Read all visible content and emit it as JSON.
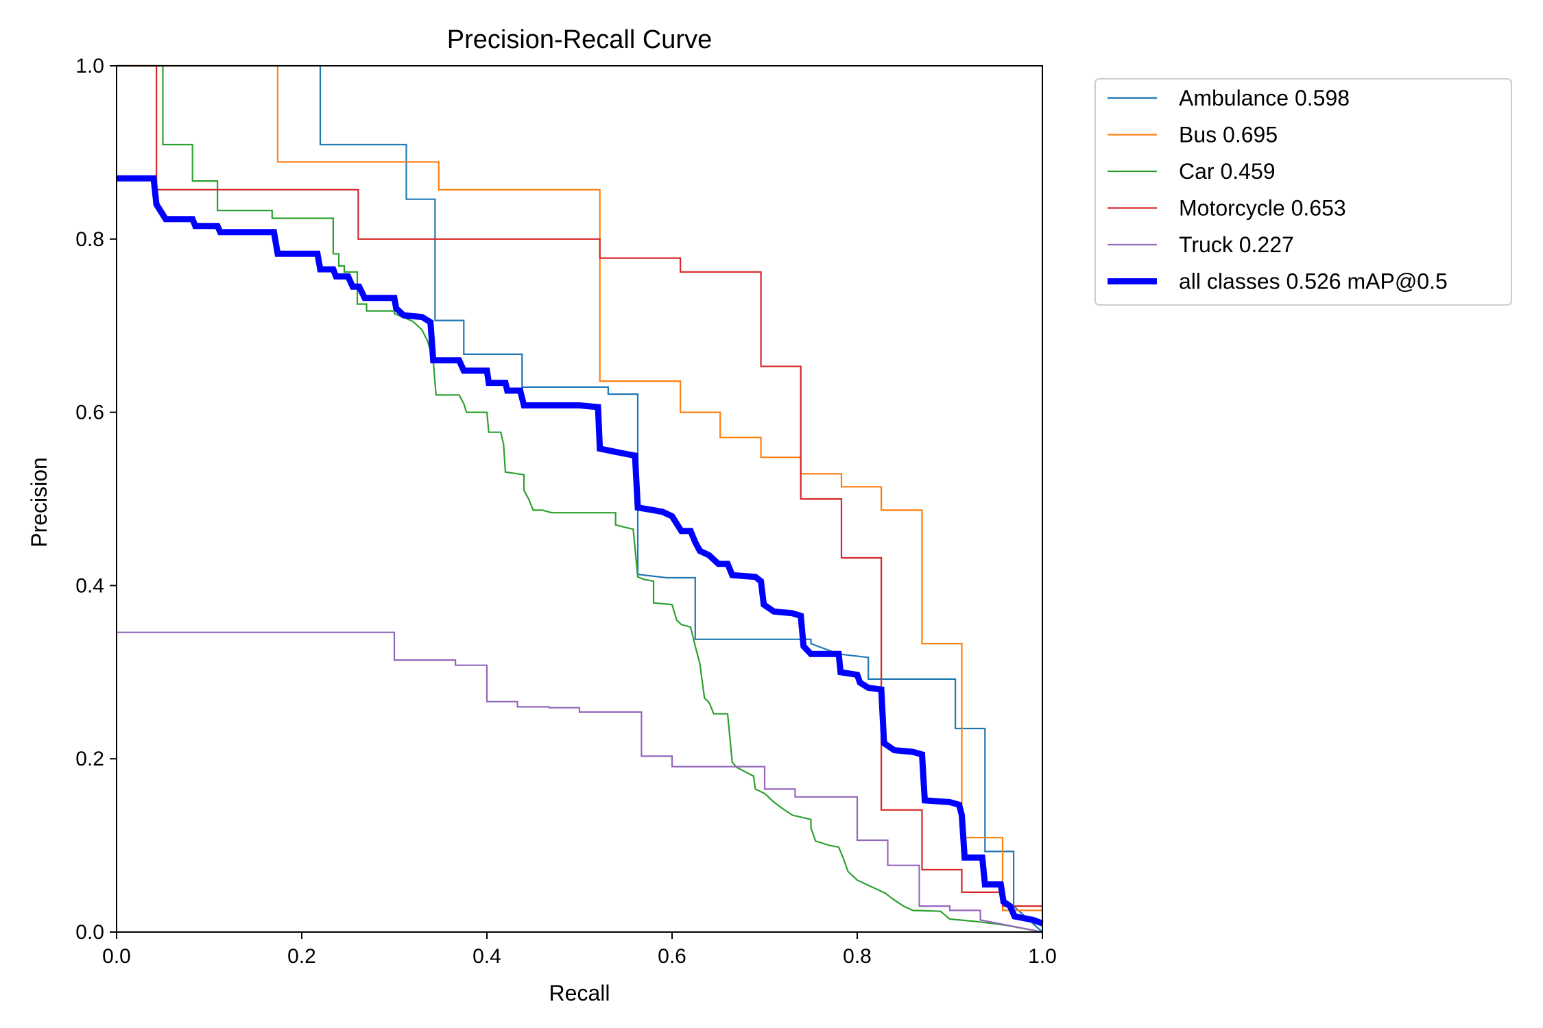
{
  "chart_data": {
    "type": "line",
    "title": "Precision-Recall Curve",
    "xlabel": "Recall",
    "ylabel": "Precision",
    "xlim": [
      0.0,
      1.0
    ],
    "ylim": [
      0.0,
      1.0
    ],
    "xticks": [
      "0.0",
      "0.2",
      "0.4",
      "0.6",
      "0.8",
      "1.0"
    ],
    "yticks": [
      "0.0",
      "0.2",
      "0.4",
      "0.6",
      "0.8",
      "1.0"
    ],
    "grid": false,
    "legend": "outside-top-right",
    "series": [
      {
        "name": "Ambulance 0.598",
        "color": "#1f77b4",
        "linewidth": "thin",
        "points": [
          [
            0.0,
            1.0
          ],
          [
            0.22,
            1.0
          ],
          [
            0.22,
            0.909
          ],
          [
            0.313,
            0.909
          ],
          [
            0.313,
            0.846
          ],
          [
            0.344,
            0.846
          ],
          [
            0.344,
            0.706
          ],
          [
            0.375,
            0.706
          ],
          [
            0.375,
            0.667
          ],
          [
            0.438,
            0.667
          ],
          [
            0.438,
            0.629
          ],
          [
            0.531,
            0.629
          ],
          [
            0.531,
            0.621
          ],
          [
            0.563,
            0.621
          ],
          [
            0.563,
            0.413
          ],
          [
            0.5625,
            0.413
          ],
          [
            0.594,
            0.409
          ],
          [
            0.625,
            0.409
          ],
          [
            0.625,
            0.338
          ],
          [
            0.75,
            0.338
          ],
          [
            0.75,
            0.333
          ],
          [
            0.78,
            0.321
          ],
          [
            0.812,
            0.317
          ],
          [
            0.812,
            0.292
          ],
          [
            0.906,
            0.292
          ],
          [
            0.906,
            0.235
          ],
          [
            0.938,
            0.235
          ],
          [
            0.938,
            0.093
          ],
          [
            0.969,
            0.093
          ],
          [
            0.969,
            0.03
          ],
          [
            1.0,
            0.0
          ]
        ]
      },
      {
        "name": "Bus 0.695",
        "color": "#ff7f0e",
        "linewidth": "thin",
        "points": [
          [
            0.0,
            1.0
          ],
          [
            0.174,
            1.0
          ],
          [
            0.174,
            0.889
          ],
          [
            0.348,
            0.889
          ],
          [
            0.348,
            0.857
          ],
          [
            0.522,
            0.857
          ],
          [
            0.522,
            0.636
          ],
          [
            0.609,
            0.636
          ],
          [
            0.609,
            0.6
          ],
          [
            0.652,
            0.6
          ],
          [
            0.652,
            0.571
          ],
          [
            0.696,
            0.571
          ],
          [
            0.696,
            0.548
          ],
          [
            0.739,
            0.548
          ],
          [
            0.739,
            0.529
          ],
          [
            0.783,
            0.529
          ],
          [
            0.783,
            0.514
          ],
          [
            0.826,
            0.514
          ],
          [
            0.826,
            0.487
          ],
          [
            0.87,
            0.487
          ],
          [
            0.87,
            0.333
          ],
          [
            0.913,
            0.333
          ],
          [
            0.913,
            0.109
          ],
          [
            0.957,
            0.109
          ],
          [
            0.957,
            0.025
          ],
          [
            1.0,
            0.025
          ]
        ]
      },
      {
        "name": "Car 0.459",
        "color": "#2ca02c",
        "linewidth": "thin",
        "points": [
          [
            0.0,
            1.0
          ],
          [
            0.05,
            1.0
          ],
          [
            0.05,
            0.909
          ],
          [
            0.082,
            0.909
          ],
          [
            0.082,
            0.867
          ],
          [
            0.109,
            0.867
          ],
          [
            0.109,
            0.833
          ],
          [
            0.168,
            0.833
          ],
          [
            0.168,
            0.824
          ],
          [
            0.234,
            0.824
          ],
          [
            0.234,
            0.783
          ],
          [
            0.24,
            0.783
          ],
          [
            0.24,
            0.769
          ],
          [
            0.246,
            0.769
          ],
          [
            0.246,
            0.762
          ],
          [
            0.26,
            0.762
          ],
          [
            0.26,
            0.725
          ],
          [
            0.27,
            0.725
          ],
          [
            0.27,
            0.717
          ],
          [
            0.3,
            0.717
          ],
          [
            0.3,
            0.714
          ],
          [
            0.32,
            0.705
          ],
          [
            0.33,
            0.695
          ],
          [
            0.336,
            0.682
          ],
          [
            0.342,
            0.66
          ],
          [
            0.345,
            0.62
          ],
          [
            0.37,
            0.62
          ],
          [
            0.375,
            0.61
          ],
          [
            0.378,
            0.6
          ],
          [
            0.4,
            0.6
          ],
          [
            0.402,
            0.577
          ],
          [
            0.415,
            0.577
          ],
          [
            0.418,
            0.563
          ],
          [
            0.42,
            0.531
          ],
          [
            0.44,
            0.528
          ],
          [
            0.44,
            0.51
          ],
          [
            0.445,
            0.5
          ],
          [
            0.45,
            0.487
          ],
          [
            0.46,
            0.487
          ],
          [
            0.47,
            0.484
          ],
          [
            0.539,
            0.484
          ],
          [
            0.539,
            0.47
          ],
          [
            0.55,
            0.467
          ],
          [
            0.558,
            0.465
          ],
          [
            0.563,
            0.41
          ],
          [
            0.57,
            0.407
          ],
          [
            0.58,
            0.405
          ],
          [
            0.58,
            0.38
          ],
          [
            0.6,
            0.378
          ],
          [
            0.605,
            0.36
          ],
          [
            0.61,
            0.355
          ],
          [
            0.62,
            0.352
          ],
          [
            0.625,
            0.33
          ],
          [
            0.63,
            0.31
          ],
          [
            0.635,
            0.27
          ],
          [
            0.64,
            0.265
          ],
          [
            0.645,
            0.252
          ],
          [
            0.66,
            0.252
          ],
          [
            0.665,
            0.196
          ],
          [
            0.67,
            0.19
          ],
          [
            0.688,
            0.18
          ],
          [
            0.69,
            0.165
          ],
          [
            0.7,
            0.16
          ],
          [
            0.71,
            0.15
          ],
          [
            0.72,
            0.142
          ],
          [
            0.73,
            0.135
          ],
          [
            0.75,
            0.13
          ],
          [
            0.75,
            0.12
          ],
          [
            0.755,
            0.105
          ],
          [
            0.77,
            0.1
          ],
          [
            0.78,
            0.098
          ],
          [
            0.785,
            0.085
          ],
          [
            0.79,
            0.07
          ],
          [
            0.8,
            0.06
          ],
          [
            0.81,
            0.055
          ],
          [
            0.82,
            0.05
          ],
          [
            0.83,
            0.045
          ],
          [
            0.84,
            0.037
          ],
          [
            0.85,
            0.03
          ],
          [
            0.86,
            0.025
          ],
          [
            0.89,
            0.024
          ],
          [
            0.9,
            0.015
          ],
          [
            0.93,
            0.012
          ],
          [
            0.96,
            0.008
          ],
          [
            1.0,
            0.0
          ]
        ]
      },
      {
        "name": "Motorcycle 0.653",
        "color": "#d62728",
        "linewidth": "thin",
        "points": [
          [
            0.0,
            1.0
          ],
          [
            0.043,
            1.0
          ],
          [
            0.043,
            0.857
          ],
          [
            0.261,
            0.857
          ],
          [
            0.261,
            0.8
          ],
          [
            0.522,
            0.8
          ],
          [
            0.522,
            0.778
          ],
          [
            0.609,
            0.778
          ],
          [
            0.609,
            0.762
          ],
          [
            0.696,
            0.762
          ],
          [
            0.696,
            0.653
          ],
          [
            0.739,
            0.653
          ],
          [
            0.739,
            0.5
          ],
          [
            0.783,
            0.5
          ],
          [
            0.783,
            0.432
          ],
          [
            0.826,
            0.432
          ],
          [
            0.826,
            0.141
          ],
          [
            0.87,
            0.141
          ],
          [
            0.87,
            0.072
          ],
          [
            0.913,
            0.072
          ],
          [
            0.913,
            0.046
          ],
          [
            0.957,
            0.046
          ],
          [
            0.957,
            0.03
          ],
          [
            1.0,
            0.03
          ]
        ]
      },
      {
        "name": "Truck 0.227",
        "color": "#9467bd",
        "linewidth": "thin",
        "points": [
          [
            0.0,
            0.346
          ],
          [
            0.3,
            0.346
          ],
          [
            0.3,
            0.314
          ],
          [
            0.366,
            0.314
          ],
          [
            0.366,
            0.308
          ],
          [
            0.4,
            0.308
          ],
          [
            0.4,
            0.266
          ],
          [
            0.433,
            0.266
          ],
          [
            0.433,
            0.26
          ],
          [
            0.467,
            0.26
          ],
          [
            0.467,
            0.259
          ],
          [
            0.5,
            0.259
          ],
          [
            0.5,
            0.254
          ],
          [
            0.567,
            0.254
          ],
          [
            0.567,
            0.203
          ],
          [
            0.6,
            0.203
          ],
          [
            0.6,
            0.191
          ],
          [
            0.7,
            0.191
          ],
          [
            0.7,
            0.165
          ],
          [
            0.733,
            0.165
          ],
          [
            0.733,
            0.156
          ],
          [
            0.8,
            0.156
          ],
          [
            0.8,
            0.106
          ],
          [
            0.833,
            0.106
          ],
          [
            0.833,
            0.077
          ],
          [
            0.867,
            0.077
          ],
          [
            0.867,
            0.03
          ],
          [
            0.9,
            0.03
          ],
          [
            0.9,
            0.025
          ],
          [
            0.933,
            0.025
          ],
          [
            0.933,
            0.014
          ],
          [
            1.0,
            0.0
          ]
        ]
      },
      {
        "name": "all classes 0.526 mAP@0.5",
        "color": "#0000ff",
        "linewidth": "thick",
        "points": [
          [
            0.0,
            0.87
          ],
          [
            0.04,
            0.87
          ],
          [
            0.043,
            0.84
          ],
          [
            0.053,
            0.823
          ],
          [
            0.082,
            0.823
          ],
          [
            0.085,
            0.815
          ],
          [
            0.109,
            0.815
          ],
          [
            0.112,
            0.808
          ],
          [
            0.17,
            0.808
          ],
          [
            0.174,
            0.783
          ],
          [
            0.217,
            0.783
          ],
          [
            0.22,
            0.765
          ],
          [
            0.234,
            0.765
          ],
          [
            0.237,
            0.757
          ],
          [
            0.25,
            0.757
          ],
          [
            0.255,
            0.745
          ],
          [
            0.262,
            0.745
          ],
          [
            0.268,
            0.732
          ],
          [
            0.3,
            0.732
          ],
          [
            0.302,
            0.72
          ],
          [
            0.31,
            0.712
          ],
          [
            0.33,
            0.71
          ],
          [
            0.339,
            0.704
          ],
          [
            0.342,
            0.66
          ],
          [
            0.37,
            0.66
          ],
          [
            0.375,
            0.648
          ],
          [
            0.4,
            0.648
          ],
          [
            0.402,
            0.634
          ],
          [
            0.42,
            0.634
          ],
          [
            0.422,
            0.625
          ],
          [
            0.436,
            0.625
          ],
          [
            0.44,
            0.608
          ],
          [
            0.5,
            0.608
          ],
          [
            0.52,
            0.606
          ],
          [
            0.522,
            0.558
          ],
          [
            0.545,
            0.553
          ],
          [
            0.56,
            0.55
          ],
          [
            0.563,
            0.49
          ],
          [
            0.58,
            0.487
          ],
          [
            0.59,
            0.485
          ],
          [
            0.6,
            0.48
          ],
          [
            0.61,
            0.463
          ],
          [
            0.62,
            0.463
          ],
          [
            0.625,
            0.45
          ],
          [
            0.63,
            0.44
          ],
          [
            0.64,
            0.435
          ],
          [
            0.65,
            0.425
          ],
          [
            0.66,
            0.425
          ],
          [
            0.665,
            0.412
          ],
          [
            0.69,
            0.41
          ],
          [
            0.696,
            0.405
          ],
          [
            0.699,
            0.378
          ],
          [
            0.71,
            0.37
          ],
          [
            0.73,
            0.368
          ],
          [
            0.739,
            0.365
          ],
          [
            0.742,
            0.33
          ],
          [
            0.75,
            0.321
          ],
          [
            0.78,
            0.321
          ],
          [
            0.782,
            0.3
          ],
          [
            0.8,
            0.297
          ],
          [
            0.803,
            0.288
          ],
          [
            0.812,
            0.282
          ],
          [
            0.826,
            0.28
          ],
          [
            0.829,
            0.218
          ],
          [
            0.84,
            0.21
          ],
          [
            0.86,
            0.208
          ],
          [
            0.87,
            0.205
          ],
          [
            0.873,
            0.152
          ],
          [
            0.9,
            0.15
          ],
          [
            0.91,
            0.147
          ],
          [
            0.913,
            0.135
          ],
          [
            0.916,
            0.086
          ],
          [
            0.935,
            0.086
          ],
          [
            0.938,
            0.055
          ],
          [
            0.955,
            0.055
          ],
          [
            0.958,
            0.035
          ],
          [
            0.965,
            0.03
          ],
          [
            0.97,
            0.018
          ],
          [
            0.99,
            0.014
          ],
          [
            1.0,
            0.01
          ]
        ]
      }
    ]
  }
}
